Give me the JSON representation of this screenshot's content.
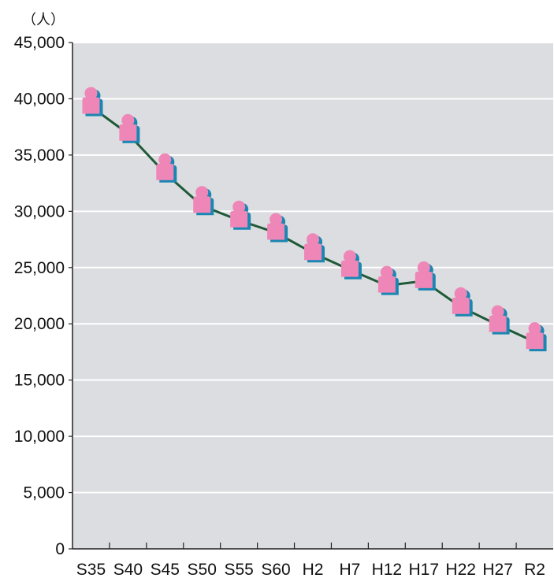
{
  "chart_data": {
    "type": "line",
    "title": "",
    "xlabel": "",
    "ylabel": "",
    "unit_label": "（人）",
    "categories": [
      "S35",
      "S40",
      "S45",
      "S50",
      "S55",
      "S60",
      "H2",
      "H7",
      "H12",
      "H17",
      "H22",
      "H27",
      "R2"
    ],
    "series": [
      {
        "values": [
          39300,
          36900,
          33400,
          30500,
          29200,
          28100,
          26300,
          24800,
          23400,
          23800,
          21500,
          19900,
          18400
        ]
      }
    ],
    "ylim": [
      0,
      45000
    ],
    "yticks": [
      0,
      5000,
      10000,
      15000,
      20000,
      25000,
      30000,
      35000,
      40000,
      45000
    ],
    "ytick_labels": [
      "0",
      "5,000",
      "10,000",
      "15,000",
      "20,000",
      "25,000",
      "30,000",
      "35,000",
      "40,000",
      "45,000"
    ],
    "grid": true,
    "marker": "person-icon",
    "colors": {
      "plot_background": "#dcdde0",
      "gridline": "#ffffff",
      "line": "#1f5a38",
      "marker_body": "#ee87b7",
      "marker_shadow": "#1a86b2"
    }
  }
}
